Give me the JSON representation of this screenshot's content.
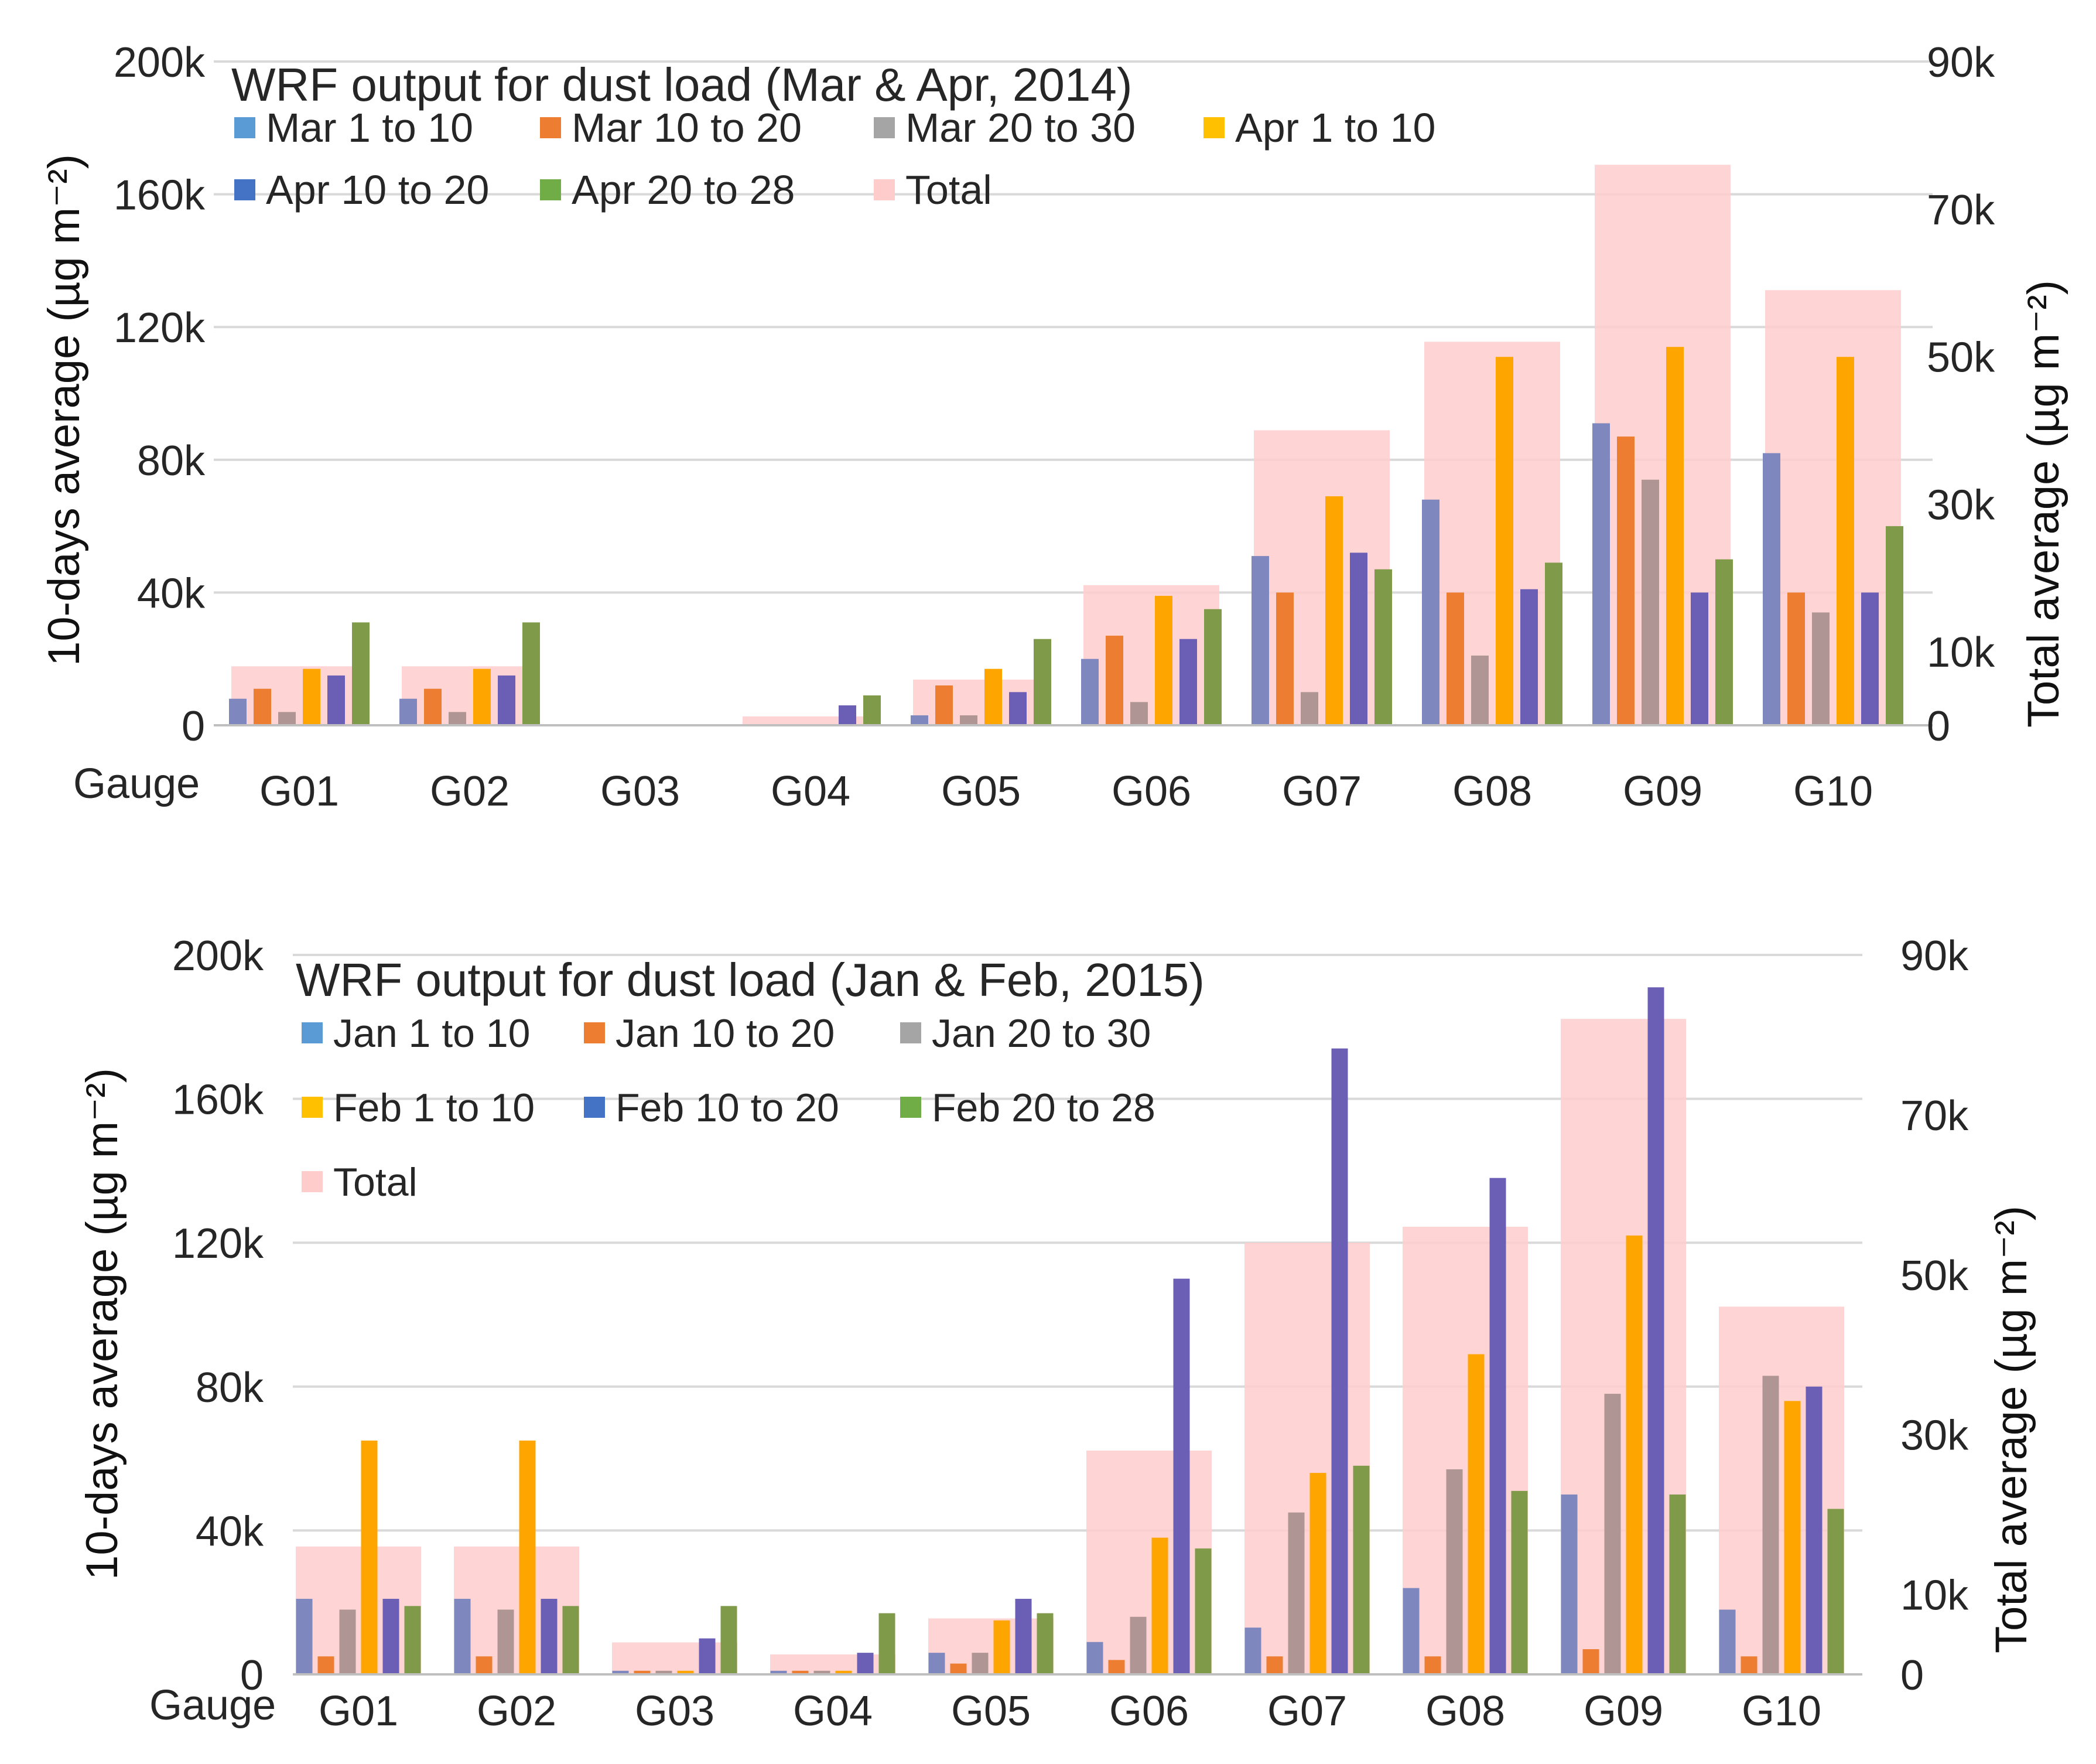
{
  "chart_data": [
    {
      "type": "bar",
      "title": "WRF output for dust load (Mar & Apr, 2014)",
      "xlabel": "Gauge",
      "ylabel": "10-days average (µg m⁻²)",
      "y2label": "Total average (µg m⁻²)",
      "ylim": [
        0,
        200000
      ],
      "y2lim": [
        0,
        90000
      ],
      "yticks": [
        "0",
        "40k",
        "80k",
        "120k",
        "160k",
        "200k"
      ],
      "y2ticks": [
        "0",
        "10k",
        "30k",
        "50k",
        "70k",
        "90k"
      ],
      "y2tick_values": [
        0,
        10000,
        30000,
        50000,
        70000,
        90000
      ],
      "categories": [
        "G01",
        "G02",
        "G03",
        "G04",
        "G05",
        "G06",
        "G07",
        "G08",
        "G09",
        "G10"
      ],
      "total": {
        "name": "Total",
        "color": "#FFCCCC",
        "values": [
          8000,
          8000,
          0,
          1200,
          6200,
          19000,
          40000,
          52000,
          76000,
          59000
        ]
      },
      "series": [
        {
          "name": "Mar 1 to 10",
          "color": "#7F88BE",
          "values": [
            8000,
            8000,
            0,
            0,
            3000,
            20000,
            51000,
            68000,
            91000,
            82000
          ]
        },
        {
          "name": "Mar 10 to 20",
          "color": "#ED7D31",
          "values": [
            11000,
            11000,
            0,
            0,
            12000,
            27000,
            40000,
            40000,
            87000,
            40000
          ]
        },
        {
          "name": "Mar 20 to 30",
          "color": "#B09595",
          "values": [
            4000,
            4000,
            0,
            0,
            3000,
            7000,
            10000,
            21000,
            74000,
            34000
          ]
        },
        {
          "name": "Apr 1 to 10",
          "color": "#FFA500",
          "values": [
            17000,
            17000,
            0,
            0,
            17000,
            39000,
            69000,
            111000,
            114000,
            111000
          ]
        },
        {
          "name": "Apr 10 to 20",
          "color": "#6B5EB5",
          "values": [
            15000,
            15000,
            0,
            6000,
            10000,
            26000,
            52000,
            41000,
            40000,
            40000
          ]
        },
        {
          "name": "Apr 20 to 28",
          "color": "#7F9A48",
          "values": [
            31000,
            31000,
            0,
            9000,
            26000,
            35000,
            47000,
            49000,
            50000,
            60000
          ]
        }
      ],
      "legend": [
        {
          "name": "Mar 1 to 10",
          "color": "#5B9BD5"
        },
        {
          "name": "Mar 10 to 20",
          "color": "#ED7D31"
        },
        {
          "name": "Mar 20 to 30",
          "color": "#A5A5A5"
        },
        {
          "name": "Apr 1 to 10",
          "color": "#FFC000"
        },
        {
          "name": "Apr 10 to 20",
          "color": "#4472C4"
        },
        {
          "name": "Apr 20 to 28",
          "color": "#70AD47"
        },
        {
          "name": "Total",
          "color": "#FFCCCC"
        }
      ],
      "legend_placement": "top-left"
    },
    {
      "type": "bar",
      "title": "WRF output for dust load (Jan & Feb, 2015)",
      "xlabel": "Gauge",
      "ylabel": "10-days average (µg m⁻²)",
      "y2label": "Total average (µg m⁻²)",
      "ylim": [
        0,
        200000
      ],
      "y2lim": [
        0,
        90000
      ],
      "yticks": [
        "0",
        "40k",
        "80k",
        "120k",
        "160k",
        "200k"
      ],
      "y2ticks": [
        "0",
        "10k",
        "30k",
        "50k",
        "70k",
        "90k"
      ],
      "y2tick_values": [
        0,
        10000,
        30000,
        50000,
        70000,
        90000
      ],
      "categories": [
        "G01",
        "G02",
        "G03",
        "G04",
        "G05",
        "G06",
        "G07",
        "G08",
        "G09",
        "G10"
      ],
      "total": {
        "name": "Total",
        "color": "#FFCCCC",
        "values": [
          16000,
          16000,
          4000,
          2500,
          7000,
          28000,
          54000,
          56000,
          82000,
          46000
        ]
      },
      "series": [
        {
          "name": "Jan 1 to 10",
          "color": "#7F88BE",
          "values": [
            21000,
            21000,
            1000,
            1000,
            6000,
            9000,
            13000,
            24000,
            50000,
            18000
          ]
        },
        {
          "name": "Jan 10 to 20",
          "color": "#ED7D31",
          "values": [
            5000,
            5000,
            1000,
            1000,
            3000,
            4000,
            5000,
            5000,
            7000,
            5000
          ]
        },
        {
          "name": "Jan 20 to 30",
          "color": "#B09595",
          "values": [
            18000,
            18000,
            1000,
            1000,
            6000,
            16000,
            45000,
            57000,
            78000,
            83000
          ]
        },
        {
          "name": "Feb 1 to 10",
          "color": "#FFA500",
          "values": [
            65000,
            65000,
            1000,
            1000,
            15000,
            38000,
            56000,
            89000,
            122000,
            76000
          ]
        },
        {
          "name": "Feb 10 to 20",
          "color": "#6B5EB5",
          "values": [
            21000,
            21000,
            10000,
            6000,
            21000,
            110000,
            174000,
            138000,
            191000,
            80000
          ]
        },
        {
          "name": "Feb 20 to 28",
          "color": "#7F9A48",
          "values": [
            19000,
            19000,
            19000,
            17000,
            17000,
            35000,
            58000,
            51000,
            50000,
            46000
          ]
        }
      ],
      "legend": [
        {
          "name": "Jan 1 to 10",
          "color": "#5B9BD5"
        },
        {
          "name": "Jan 10 to 20",
          "color": "#ED7D31"
        },
        {
          "name": "Jan 20 to 30",
          "color": "#A5A5A5"
        },
        {
          "name": "Feb 1 to 10",
          "color": "#FFC000"
        },
        {
          "name": "Feb 10 to 20",
          "color": "#4472C4"
        },
        {
          "name": "Feb 20 to 28",
          "color": "#70AD47"
        },
        {
          "name": "Total",
          "color": "#FFCCCC"
        }
      ],
      "legend_placement": "top-left"
    }
  ]
}
